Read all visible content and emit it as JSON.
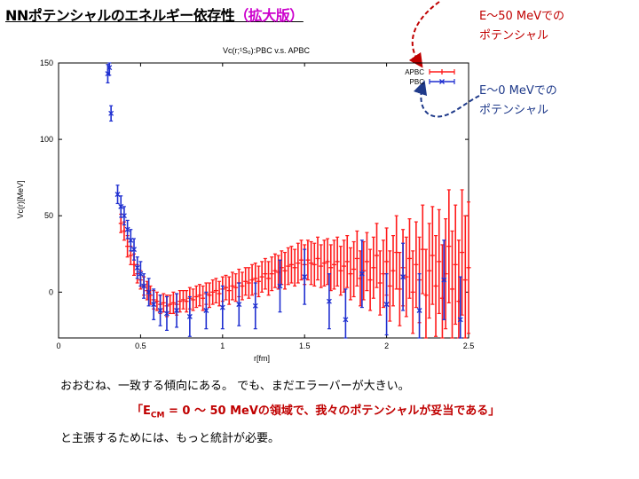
{
  "page": {
    "title_main": "NNポテンシャルのエネルギー依存性",
    "title_accent": "（拡大版）"
  },
  "notes": {
    "high_energy": {
      "line1": "E～50 MeVでの",
      "line2": "ポテンシャル",
      "color": "#c00000"
    },
    "low_energy": {
      "line1": "E～0 MeVでの",
      "line2": "ポテンシャル",
      "color": "#1f3a8a"
    }
  },
  "chart_data": {
    "type": "scatter",
    "title": "Vc(r;¹S₀):PBC v.s. APBC",
    "xlabel": "r[fm]",
    "ylabel": "Vc(r)[MeV]",
    "xlim": [
      0,
      2.5
    ],
    "ylim": [
      -30,
      150
    ],
    "xticks": [
      "0",
      "0.5",
      "1",
      "1.5",
      "2",
      "2.5"
    ],
    "yticks": [
      "0",
      "50",
      "100",
      "150"
    ],
    "legend_position": "top-right",
    "series": [
      {
        "name": "APBC",
        "color": "#ff1a1a",
        "marker": "plus",
        "points": [
          [
            0.38,
            45,
            6
          ],
          [
            0.4,
            40,
            6
          ],
          [
            0.42,
            30,
            7
          ],
          [
            0.44,
            24,
            6
          ],
          [
            0.46,
            18,
            7
          ],
          [
            0.48,
            12,
            6
          ],
          [
            0.5,
            8,
            6
          ],
          [
            0.52,
            4,
            6
          ],
          [
            0.54,
            1,
            6
          ],
          [
            0.56,
            -2,
            6
          ],
          [
            0.58,
            -5,
            6
          ],
          [
            0.6,
            -6,
            6
          ],
          [
            0.62,
            -8,
            6
          ],
          [
            0.64,
            -7,
            6
          ],
          [
            0.66,
            -9,
            7
          ],
          [
            0.68,
            -8,
            6
          ],
          [
            0.7,
            -7,
            7
          ],
          [
            0.72,
            -8,
            7
          ],
          [
            0.74,
            -6,
            7
          ],
          [
            0.76,
            -5,
            6
          ],
          [
            0.78,
            -6,
            7
          ],
          [
            0.8,
            -4,
            7
          ],
          [
            0.82,
            -5,
            7
          ],
          [
            0.84,
            -3,
            7
          ],
          [
            0.86,
            -2,
            7
          ],
          [
            0.88,
            -4,
            8
          ],
          [
            0.9,
            -1,
            7
          ],
          [
            0.92,
            -2,
            8
          ],
          [
            0.94,
            0,
            8
          ],
          [
            0.96,
            1,
            8
          ],
          [
            0.98,
            -1,
            8
          ],
          [
            1.0,
            2,
            8
          ],
          [
            1.02,
            3,
            8
          ],
          [
            1.04,
            1,
            9
          ],
          [
            1.06,
            4,
            9
          ],
          [
            1.08,
            3,
            9
          ],
          [
            1.1,
            6,
            9
          ],
          [
            1.12,
            4,
            9
          ],
          [
            1.14,
            7,
            9
          ],
          [
            1.16,
            6,
            10
          ],
          [
            1.18,
            8,
            10
          ],
          [
            1.2,
            9,
            10
          ],
          [
            1.22,
            7,
            10
          ],
          [
            1.24,
            10,
            10
          ],
          [
            1.26,
            12,
            10
          ],
          [
            1.28,
            9,
            11
          ],
          [
            1.3,
            12,
            11
          ],
          [
            1.32,
            14,
            11
          ],
          [
            1.34,
            13,
            11
          ],
          [
            1.36,
            16,
            11
          ],
          [
            1.38,
            14,
            12
          ],
          [
            1.4,
            17,
            12
          ],
          [
            1.42,
            18,
            12
          ],
          [
            1.44,
            16,
            12
          ],
          [
            1.46,
            19,
            13
          ],
          [
            1.48,
            21,
            13
          ],
          [
            1.5,
            18,
            13
          ],
          [
            1.52,
            21,
            13
          ],
          [
            1.54,
            19,
            14
          ],
          [
            1.56,
            18,
            14
          ],
          [
            1.58,
            22,
            14
          ],
          [
            1.6,
            17,
            14
          ],
          [
            1.62,
            19,
            15
          ],
          [
            1.64,
            20,
            15
          ],
          [
            1.66,
            16,
            15
          ],
          [
            1.68,
            18,
            16
          ],
          [
            1.7,
            20,
            16
          ],
          [
            1.72,
            14,
            16
          ],
          [
            1.74,
            17,
            17
          ],
          [
            1.76,
            20,
            17
          ],
          [
            1.78,
            12,
            17
          ],
          [
            1.8,
            15,
            18
          ],
          [
            1.82,
            22,
            18
          ],
          [
            1.84,
            9,
            18
          ],
          [
            1.86,
            14,
            19
          ],
          [
            1.88,
            20,
            19
          ],
          [
            1.9,
            8,
            20
          ],
          [
            1.92,
            16,
            20
          ],
          [
            1.94,
            24,
            21
          ],
          [
            1.96,
            6,
            21
          ],
          [
            1.98,
            12,
            22
          ],
          [
            2.0,
            20,
            22
          ],
          [
            2.02,
            4,
            23
          ],
          [
            2.04,
            14,
            23
          ],
          [
            2.06,
            26,
            24
          ],
          [
            2.08,
            2,
            24
          ],
          [
            2.1,
            16,
            25
          ],
          [
            2.12,
            10,
            26
          ],
          [
            2.14,
            22,
            26
          ],
          [
            2.16,
            0,
            27
          ],
          [
            2.18,
            18,
            28
          ],
          [
            2.2,
            8,
            28
          ],
          [
            2.22,
            28,
            29
          ],
          [
            2.24,
            -2,
            30
          ],
          [
            2.26,
            14,
            31
          ],
          [
            2.28,
            24,
            32
          ],
          [
            2.3,
            4,
            33
          ],
          [
            2.32,
            20,
            34
          ],
          [
            2.34,
            -4,
            35
          ],
          [
            2.36,
            12,
            36
          ],
          [
            2.38,
            30,
            37
          ],
          [
            2.4,
            2,
            38
          ],
          [
            2.42,
            18,
            39
          ],
          [
            2.44,
            -6,
            40
          ],
          [
            2.46,
            26,
            41
          ],
          [
            2.48,
            8,
            42
          ],
          [
            2.5,
            16,
            43
          ]
        ]
      },
      {
        "name": "PBC",
        "color": "#1f2fd0",
        "marker": "x",
        "points": [
          [
            0.3,
            143,
            6
          ],
          [
            0.31,
            147,
            5
          ],
          [
            0.32,
            117,
            5
          ],
          [
            0.36,
            64,
            6
          ],
          [
            0.38,
            56,
            7
          ],
          [
            0.4,
            50,
            6
          ],
          [
            0.42,
            41,
            6
          ],
          [
            0.44,
            34,
            7
          ],
          [
            0.46,
            28,
            7
          ],
          [
            0.48,
            16,
            7
          ],
          [
            0.5,
            12,
            8
          ],
          [
            0.52,
            4,
            8
          ],
          [
            0.55,
            0,
            9
          ],
          [
            0.58,
            -8,
            10
          ],
          [
            0.62,
            -12,
            10
          ],
          [
            0.66,
            -14,
            11
          ],
          [
            0.72,
            -12,
            11
          ],
          [
            0.8,
            -16,
            13
          ],
          [
            0.9,
            -12,
            12
          ],
          [
            1.0,
            -10,
            14
          ],
          [
            1.1,
            -8,
            14
          ],
          [
            1.2,
            -9,
            15
          ],
          [
            1.35,
            4,
            17
          ],
          [
            1.5,
            10,
            18
          ],
          [
            1.65,
            -6,
            18
          ],
          [
            1.75,
            -18,
            20
          ],
          [
            1.85,
            12,
            22
          ],
          [
            2.0,
            -8,
            20
          ],
          [
            2.1,
            10,
            22
          ],
          [
            2.2,
            -12,
            24
          ],
          [
            2.35,
            8,
            26
          ],
          [
            2.45,
            -18,
            28
          ]
        ]
      }
    ]
  },
  "conclusion": {
    "line1": "おおむね、一致する傾向にある。 でも、まだエラーバーが大きい。",
    "line2_pre": "「E",
    "line2_sub": "CM",
    "line2_post": " = 0 〜 50 MeVの領域で、我々のポテンシャルが妥当である」",
    "line3": "と主張するためには、もっと統計が必要。"
  }
}
